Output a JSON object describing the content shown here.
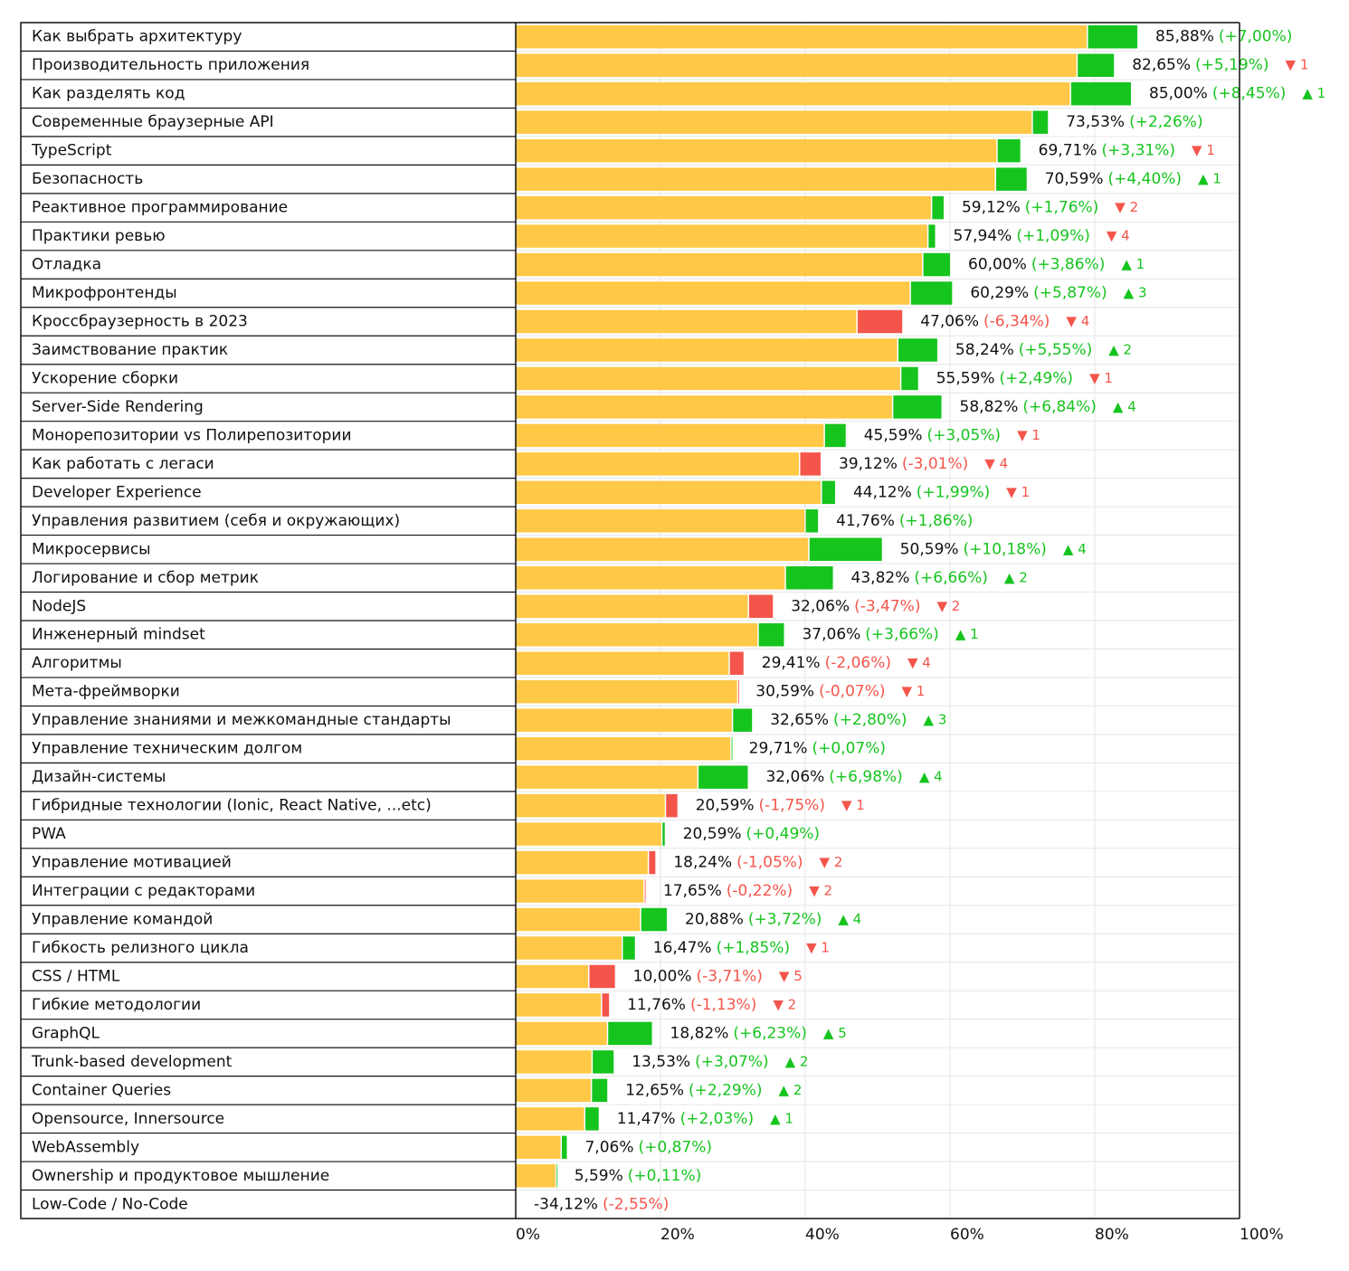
{
  "chart_data": {
    "type": "bar",
    "categories": [
      "Как выбрать архитектуру",
      "Производительность приложения",
      "Как разделять код",
      "Современные браузерные API",
      "TypeScript",
      "Безопасность",
      "Реактивное программирование",
      "Практики ревью",
      "Отладка",
      "Микрофронтенды",
      "Кроссбраузерность в 2023",
      "Заимствование практик",
      "Ускорение сборки",
      "Server-Side Rendering",
      "Монорепозитории vs Полирепозитории",
      "Как работать с легаси",
      "Developer Experience",
      "Управления развитием (себя и окружающих)",
      "Микросервисы",
      "Логирование и сбор метрик",
      "NodeJS",
      "Инженерный mindset",
      "Алгоритмы",
      "Мета-фреймворки",
      "Управление знаниями и межкомандные стандарты",
      "Управление техническим долгом",
      "Дизайн-системы",
      "Гибридные технологии (Ionic, React Native, ...etc)",
      "PWA",
      "Управление мотивацией",
      "Интеграции с редакторами",
      "Управление командой",
      "Гибкость релизного цикла",
      "CSS / HTML",
      "Гибкие методологии",
      "GraphQL",
      "Trunk-based development",
      "Container Queries",
      "Opensource, Innersource",
      "WebAssembly",
      "Ownership и продуктовое мышление",
      "Low-Code / No-Code"
    ],
    "values": [
      85.88,
      82.65,
      85.0,
      73.53,
      69.71,
      70.59,
      59.12,
      57.94,
      60.0,
      60.29,
      47.06,
      58.24,
      55.59,
      58.82,
      45.59,
      39.12,
      44.12,
      41.76,
      50.59,
      43.82,
      32.06,
      37.06,
      29.41,
      30.59,
      32.65,
      29.71,
      32.06,
      20.59,
      20.59,
      18.24,
      17.65,
      20.88,
      16.47,
      10.0,
      11.76,
      18.82,
      13.53,
      12.65,
      11.47,
      7.06,
      5.59,
      -34.12
    ],
    "value_labels": [
      "85,88%",
      "82,65%",
      "85,00%",
      "73,53%",
      "69,71%",
      "70,59%",
      "59,12%",
      "57,94%",
      "60,00%",
      "60,29%",
      "47,06%",
      "58,24%",
      "55,59%",
      "58,82%",
      "45,59%",
      "39,12%",
      "44,12%",
      "41,76%",
      "50,59%",
      "43,82%",
      "32,06%",
      "37,06%",
      "29,41%",
      "30,59%",
      "32,65%",
      "29,71%",
      "32,06%",
      "20,59%",
      "20,59%",
      "18,24%",
      "17,65%",
      "20,88%",
      "16,47%",
      "10,00%",
      "11,76%",
      "18,82%",
      "13,53%",
      "12,65%",
      "11,47%",
      "7,06%",
      "5,59%",
      "-34,12%"
    ],
    "changes": [
      7.0,
      5.19,
      8.45,
      2.26,
      3.31,
      4.4,
      1.76,
      1.09,
      3.86,
      5.87,
      -6.34,
      5.55,
      2.49,
      6.84,
      3.05,
      -3.01,
      1.99,
      1.86,
      10.18,
      6.66,
      -3.47,
      3.66,
      -2.06,
      -0.07,
      2.8,
      0.07,
      6.98,
      -1.75,
      0.49,
      -1.05,
      -0.22,
      3.72,
      1.85,
      -3.71,
      -1.13,
      6.23,
      3.07,
      2.29,
      2.03,
      0.87,
      0.11,
      -2.55
    ],
    "change_labels": [
      "(+7,00%)",
      "(+5,19%)",
      "(+8,45%)",
      "(+2,26%)",
      "(+3,31%)",
      "(+4,40%)",
      "(+1,76%)",
      "(+1,09%)",
      "(+3,86%)",
      "(+5,87%)",
      "(-6,34%)",
      "(+5,55%)",
      "(+2,49%)",
      "(+6,84%)",
      "(+3,05%)",
      "(-3,01%)",
      "(+1,99%)",
      "(+1,86%)",
      "(+10,18%)",
      "(+6,66%)",
      "(-3,47%)",
      "(+3,66%)",
      "(-2,06%)",
      "(-0,07%)",
      "(+2,80%)",
      "(+0,07%)",
      "(+6,98%)",
      "(-1,75%)",
      "(+0,49%)",
      "(-1,05%)",
      "(-0,22%)",
      "(+3,72%)",
      "(+1,85%)",
      "(-3,71%)",
      "(-1,13%)",
      "(+6,23%)",
      "(+3,07%)",
      "(+2,29%)",
      "(+2,03%)",
      "(+0,87%)",
      "(+0,11%)",
      "(-2,55%)"
    ],
    "rank_changes": [
      null,
      {
        "value": -1,
        "label": "▼ 1"
      },
      {
        "value": 1,
        "label": "▲ 1"
      },
      null,
      {
        "value": -1,
        "label": "▼ 1"
      },
      {
        "value": 1,
        "label": "▲ 1"
      },
      {
        "value": -2,
        "label": "▼ 2"
      },
      {
        "value": -4,
        "label": "▼ 4"
      },
      {
        "value": 1,
        "label": "▲ 1"
      },
      {
        "value": 3,
        "label": "▲ 3"
      },
      {
        "value": -4,
        "label": "▼ 4"
      },
      {
        "value": 2,
        "label": "▲ 2"
      },
      {
        "value": -1,
        "label": "▼ 1"
      },
      {
        "value": 4,
        "label": "▲ 4"
      },
      {
        "value": -1,
        "label": "▼ 1"
      },
      {
        "value": -4,
        "label": "▼ 4"
      },
      {
        "value": -1,
        "label": "▼ 1"
      },
      null,
      {
        "value": 4,
        "label": "▲ 4"
      },
      {
        "value": 2,
        "label": "▲ 2"
      },
      {
        "value": -2,
        "label": "▼ 2"
      },
      {
        "value": 1,
        "label": "▲ 1"
      },
      {
        "value": -4,
        "label": "▼ 4"
      },
      {
        "value": -1,
        "label": "▼ 1"
      },
      {
        "value": 3,
        "label": "▲ 3"
      },
      null,
      {
        "value": 4,
        "label": "▲ 4"
      },
      {
        "value": -1,
        "label": "▼ 1"
      },
      null,
      {
        "value": -2,
        "label": "▼ 2"
      },
      {
        "value": -2,
        "label": "▼ 2"
      },
      {
        "value": 4,
        "label": "▲ 4"
      },
      {
        "value": -1,
        "label": "▼ 1"
      },
      {
        "value": -5,
        "label": "▼ 5"
      },
      {
        "value": -2,
        "label": "▼ 2"
      },
      {
        "value": 5,
        "label": "▲ 5"
      },
      {
        "value": 2,
        "label": "▲ 2"
      },
      {
        "value": 2,
        "label": "▲ 2"
      },
      {
        "value": 1,
        "label": "▲ 1"
      },
      null,
      null,
      null
    ],
    "colors": {
      "base": "#ffc846",
      "increase": "#16c41e",
      "decrease": "#f4554b"
    },
    "xlim": [
      0,
      100
    ],
    "xticks": [
      {
        "value": 0,
        "label": "0%"
      },
      {
        "value": 20,
        "label": "20%"
      },
      {
        "value": 40,
        "label": "40%"
      },
      {
        "value": 60,
        "label": "60%"
      },
      {
        "value": 80,
        "label": "80%"
      },
      {
        "value": 100,
        "label": "100%"
      }
    ],
    "grid": true
  }
}
